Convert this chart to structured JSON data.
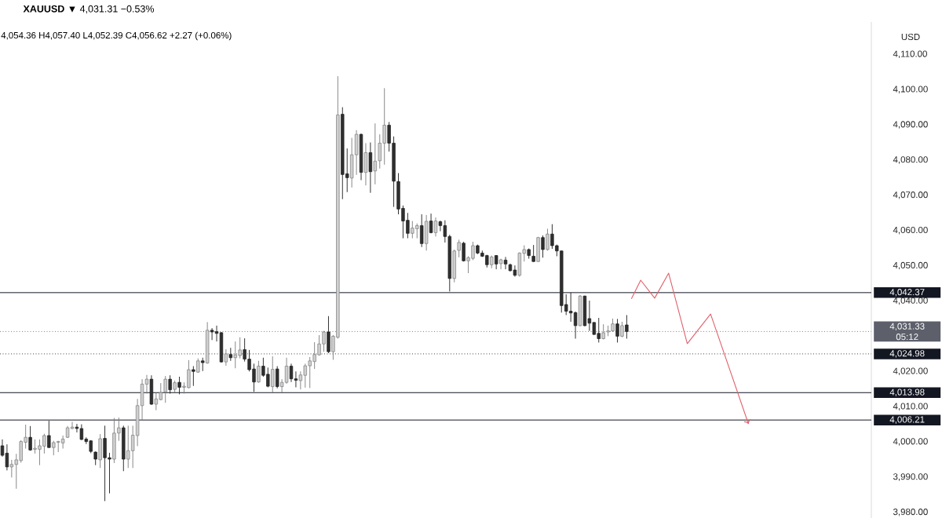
{
  "chart_data": {
    "type": "candlestick",
    "title": "**XAUUSD** ▼ 4,031.31 −0.53%",
    "subtitle": "4,054.36 H4,057.40 L4,052.39 C4,056.62 +2.27 (+0.06%)",
    "ylabel": "USD",
    "annotations": [
      "05:12"
    ],
    "categories": [
      null,
      null,
      null,
      null,
      null,
      null,
      null,
      null,
      null,
      null,
      null,
      null,
      null,
      null,
      null,
      null,
      null,
      null,
      null,
      null,
      null,
      null,
      null,
      null,
      null,
      null,
      null,
      null,
      null,
      null,
      null,
      null,
      null,
      null,
      null,
      null,
      null,
      null,
      null,
      null,
      null,
      null,
      null,
      null,
      null,
      null,
      null,
      null,
      null,
      null,
      null,
      null,
      null,
      null,
      null,
      null,
      null,
      null,
      null,
      null,
      null,
      null,
      null,
      null,
      null,
      null,
      null,
      null,
      null,
      null,
      null,
      null,
      null,
      null,
      null,
      null,
      null,
      null,
      null,
      null,
      null,
      null,
      null,
      null,
      null,
      null,
      null,
      null,
      null,
      null,
      null,
      null,
      null,
      null,
      null,
      null,
      null,
      null,
      null,
      null,
      null,
      null,
      null,
      null,
      null,
      null,
      null,
      null,
      null,
      null,
      null,
      null,
      null,
      null,
      null,
      null,
      null,
      null,
      null,
      null,
      null,
      null,
      null,
      null,
      null,
      null,
      null,
      null,
      null,
      null,
      null,
      null,
      null,
      null,
      null,
      null,
      null,
      null,
      null,
      null,
      null,
      null,
      null,
      null,
      null,
      null,
      null,
      null,
      null,
      null,
      null,
      null,
      null,
      null,
      null,
      null,
      null,
      null,
      null,
      null,
      null,
      null,
      null,
      null,
      null,
      null,
      null,
      null,
      null,
      null,
      null,
      null,
      null,
      null,
      null,
      null,
      null,
      null,
      null,
      null,
      null,
      null,
      null,
      null,
      null,
      null,
      null
    ],
    "ohlc": [
      [
        3998.9,
        4000.7,
        3995.8,
        3996.2
      ],
      [
        3996.8,
        3999.3,
        3991.9,
        3992.9
      ],
      [
        3992.9,
        3994.9,
        3989.9,
        3993.6
      ],
      [
        3993.6,
        3996.6,
        3986.7,
        3994.9
      ],
      [
        3994.7,
        4000.5,
        3994.1,
        4000.1
      ],
      [
        3999.9,
        4004.9,
        3998.1,
        4001.3
      ],
      [
        4001.3,
        4004.5,
        3997.5,
        3997.7
      ],
      [
        3997.9,
        4000.7,
        3996.7,
        3998.2
      ],
      [
        3997.9,
        4000.7,
        3993.4,
        3998.9
      ],
      [
        3998.8,
        4002.3,
        3996.7,
        4001.8
      ],
      [
        4001.8,
        4006.0,
        3998.3,
        3998.4
      ],
      [
        3998.4,
        4000.3,
        3996.2,
        3999.8
      ],
      [
        3999.9,
        4000.3,
        3997.1,
        4000.1
      ],
      [
        3999.7,
        4001.8,
        3998.1,
        4000.8
      ],
      [
        4001.3,
        4004.5,
        4001.1,
        4004.0
      ],
      [
        4003.8,
        4005.7,
        4003.6,
        4004.2
      ],
      [
        4004.2,
        4005.1,
        4002.7,
        4003.8
      ],
      [
        4003.8,
        4005.0,
        4000.5,
        4000.7
      ],
      [
        4000.8,
        4001.3,
        3999.4,
        4000.1
      ],
      [
        4000.3,
        4000.5,
        3996.8,
        3997.3
      ],
      [
        3997.1,
        3997.3,
        3993.4,
        3995.1
      ],
      [
        3994.9,
        4002.2,
        3992.6,
        4000.9
      ],
      [
        4001.0,
        4004.6,
        3983.2,
        3995.5
      ],
      [
        3995.5,
        3996.9,
        3985.4,
        3995.1
      ],
      [
        3995.1,
        4006.8,
        3994.0,
        4002.5
      ],
      [
        4002.5,
        4006.9,
        4000.3,
        4004.0
      ],
      [
        4004.0,
        4004.6,
        3991.7,
        3995.1
      ],
      [
        3995.1,
        4004.6,
        3992.6,
        3997.5
      ],
      [
        3997.5,
        4004.6,
        3992.6,
        4001.9
      ],
      [
        4001.8,
        4012.2,
        3998.8,
        4010.3
      ],
      [
        4010.3,
        4017.8,
        4006.21,
        4016.4
      ],
      [
        4016.4,
        4019.0,
        4013.7,
        4017.8
      ],
      [
        4017.8,
        4018.9,
        4010.5,
        4010.7
      ],
      [
        4010.7,
        4013.9,
        4009.0,
        4012.2
      ],
      [
        4012.0,
        4016.7,
        4011.8,
        4014.0
      ],
      [
        4014.2,
        4018.7,
        4011.1,
        4017.8
      ],
      [
        4017.8,
        4018.9,
        4013.7,
        4014.8
      ],
      [
        4014.9,
        4017.4,
        4014.0,
        4016.8
      ],
      [
        4016.9,
        4018.5,
        4013.5,
        4015.5
      ],
      [
        4015.5,
        4016.9,
        4013.7,
        4015.8
      ],
      [
        4015.4,
        4023.2,
        4015.2,
        4020.5
      ],
      [
        4020.5,
        4021.5,
        4015.9,
        4020.0
      ],
      [
        4019.8,
        4023.7,
        4019.6,
        4023.0
      ],
      [
        4023.0,
        4023.9,
        4020.1,
        4022.5
      ],
      [
        4022.4,
        4034.0,
        4022.2,
        4031.7
      ],
      [
        4031.7,
        4032.3,
        4028.9,
        4031.2
      ],
      [
        4031.3,
        4033.0,
        4028.5,
        4030.8
      ],
      [
        4031.0,
        4031.2,
        4022.5,
        4022.7
      ],
      [
        4022.7,
        4026.3,
        4021.6,
        4025.0
      ],
      [
        4024.8,
        4026.7,
        4023.0,
        4023.9
      ],
      [
        4023.9,
        4028.5,
        4020.9,
        4024.7
      ],
      [
        4024.5,
        4029.7,
        4023.7,
        4026.1
      ],
      [
        4026.2,
        4029.4,
        4022.8,
        4023.5
      ],
      [
        4023.5,
        4026.1,
        4020.0,
        4020.5
      ],
      [
        4020.7,
        4022.2,
        4014.2,
        4017.0
      ],
      [
        4017.0,
        4023.0,
        4016.8,
        4021.5
      ],
      [
        4021.5,
        4023.9,
        4018.5,
        4018.9
      ],
      [
        4019.2,
        4021.1,
        4015.5,
        4015.8
      ],
      [
        4015.7,
        4024.3,
        4013.98,
        4020.6
      ],
      [
        4020.7,
        4021.5,
        4015.2,
        4015.7
      ],
      [
        4015.7,
        4017.8,
        4014.0,
        4016.9
      ],
      [
        4016.9,
        4023.9,
        4016.5,
        4021.5
      ],
      [
        4021.5,
        4022.2,
        4017.0,
        4017.9
      ],
      [
        4017.9,
        4020.0,
        4015.5,
        4017.5
      ],
      [
        4017.4,
        4020.0,
        4014.9,
        4019.0
      ],
      [
        4018.9,
        4022.2,
        4015.4,
        4021.6
      ],
      [
        4021.6,
        4024.1,
        4015.3,
        4023.0
      ],
      [
        4022.8,
        4028.3,
        4020.7,
        4024.8
      ],
      [
        4024.7,
        4030.3,
        4024.5,
        4027.8
      ],
      [
        4027.8,
        4031.5,
        4025.6,
        4031.2
      ],
      [
        4031.2,
        4035.7,
        4025.2,
        4025.6
      ],
      [
        4025.6,
        4030.3,
        4023.3,
        4030.0
      ],
      [
        4029.7,
        4103.8,
        4029.3,
        4092.8
      ],
      [
        4093.0,
        4095.0,
        4068.9,
        4075.9
      ],
      [
        4076.1,
        4083.3,
        4070.9,
        4075.0
      ],
      [
        4074.9,
        4086.3,
        4072.2,
        4081.5
      ],
      [
        4081.5,
        4088.5,
        4075.8,
        4087.3
      ],
      [
        4087.3,
        4087.5,
        4074.3,
        4076.5
      ],
      [
        4076.5,
        4084.8,
        4072.8,
        4082.1
      ],
      [
        4082.1,
        4085.0,
        4070.7,
        4076.7
      ],
      [
        4076.9,
        4090.4,
        4073.1,
        4079.7
      ],
      [
        4079.8,
        4087.3,
        4077.6,
        4084.8
      ],
      [
        4084.8,
        4100.4,
        4078.7,
        4089.9
      ],
      [
        4089.9,
        4090.8,
        4082.4,
        4084.8
      ],
      [
        4084.8,
        4086.7,
        4066.7,
        4074.0
      ],
      [
        4073.9,
        4076.3,
        4064.6,
        4066.1
      ],
      [
        4066.3,
        4067.1,
        4057.8,
        4062.7
      ],
      [
        4062.9,
        4065.0,
        4057.8,
        4059.2
      ],
      [
        4059.2,
        4062.7,
        4057.8,
        4060.7
      ],
      [
        4060.5,
        4062.0,
        4057.8,
        4061.4
      ],
      [
        4061.4,
        4064.6,
        4055.3,
        4056.3
      ],
      [
        4056.3,
        4064.4,
        4054.3,
        4062.6
      ],
      [
        4062.7,
        4064.8,
        4059.2,
        4059.4
      ],
      [
        4059.4,
        4063.7,
        4058.3,
        4062.7
      ],
      [
        4062.5,
        4062.8,
        4059.8,
        4061.4
      ],
      [
        4061.4,
        4062.9,
        4056.6,
        4058.3
      ],
      [
        4058.3,
        4058.8,
        4042.7,
        4046.4
      ],
      [
        4046.4,
        4054.6,
        4045.3,
        4054.2
      ],
      [
        4054.36,
        4057.4,
        4052.39,
        4056.62
      ],
      [
        4056.4,
        4056.8,
        4051.2,
        4051.4
      ],
      [
        4051.4,
        4052.7,
        4047.9,
        4052.3
      ],
      [
        4052.1,
        4056.8,
        4051.6,
        4055.7
      ],
      [
        4055.7,
        4056.0,
        4053.3,
        4053.6
      ],
      [
        4053.6,
        4054.3,
        4052.5,
        4052.7
      ],
      [
        4052.9,
        4053.1,
        4049.5,
        4050.3
      ],
      [
        4050.3,
        4052.9,
        4049.3,
        4052.5
      ],
      [
        4052.9,
        4053.0,
        4049.0,
        4050.5
      ],
      [
        4050.6,
        4052.0,
        4049.0,
        4051.7
      ],
      [
        4051.6,
        4052.5,
        4049.0,
        4050.5
      ],
      [
        4050.3,
        4050.6,
        4048.4,
        4048.6
      ],
      [
        4048.8,
        4050.1,
        4046.9,
        4047.3
      ],
      [
        4047.3,
        4053.8,
        4046.9,
        4053.6
      ],
      [
        4053.5,
        4055.8,
        4051.2,
        4054.6
      ],
      [
        4054.6,
        4054.9,
        4052.0,
        4052.9
      ],
      [
        4052.7,
        4055.9,
        4051.1,
        4051.2
      ],
      [
        4051.2,
        4058.2,
        4051.1,
        4058.0
      ],
      [
        4058.0,
        4058.6,
        4052.3,
        4054.6
      ],
      [
        4054.6,
        4060.5,
        4054.3,
        4059.0
      ],
      [
        4059.0,
        4061.8,
        4054.8,
        4055.7
      ],
      [
        4055.7,
        4056.0,
        4052.7,
        4054.2
      ],
      [
        4054.2,
        4054.3,
        4036.7,
        4038.7
      ],
      [
        4039.0,
        4041.9,
        4036.0,
        4037.1
      ],
      [
        4037.1,
        4042.37,
        4034.1,
        4036.6
      ],
      [
        4036.7,
        4037.0,
        4029.3,
        4033.0
      ],
      [
        4033.0,
        4041.7,
        4032.8,
        4041.4
      ],
      [
        4041.4,
        4041.5,
        4032.8,
        4033.0
      ],
      [
        4035.0,
        4040.1,
        4031.5,
        4033.7
      ],
      [
        4033.9,
        4034.0,
        4030.4,
        4030.5
      ],
      [
        4030.8,
        4035.2,
        4028.2,
        4029.3
      ],
      [
        4029.3,
        4033.4,
        4029.1,
        4031.0
      ],
      [
        4031.2,
        4033.0,
        4030.0,
        4031.5
      ],
      [
        4031.5,
        4035.0,
        4031.2,
        4033.5
      ],
      [
        4033.5,
        4034.9,
        4028.2,
        4030.0
      ],
      [
        4030.0,
        4034.1,
        4029.7,
        4033.0
      ],
      [
        4033.2,
        4036.0,
        4029.3,
        4031.33
      ],
      null,
      null,
      null,
      null,
      null,
      null,
      null,
      null,
      null,
      null,
      null,
      null,
      null,
      null,
      null,
      null,
      null,
      null,
      null,
      null,
      null,
      null,
      null,
      null,
      null,
      null,
      null,
      null,
      null,
      null,
      null,
      null,
      null,
      null,
      null,
      null,
      null,
      null,
      null,
      null,
      null,
      null,
      null,
      null,
      null,
      null,
      null,
      null,
      null,
      null,
      null,
      null
    ],
    "colors": [
      "#2f2f2f",
      "#2f2f2f",
      "#cfcfcf",
      "#cfcfcf",
      "#cfcfcf",
      "#cfcfcf",
      "#2f2f2f",
      "#cfcfcf",
      "#cfcfcf",
      "#cfcfcf",
      "#2f2f2f",
      "#cfcfcf",
      "#cfcfcf",
      "#cfcfcf",
      "#cfcfcf",
      "#cfcfcf",
      "#2f2f2f",
      "#2f2f2f",
      "#2f2f2f",
      "#2f2f2f",
      "#2f2f2f",
      "#cfcfcf",
      "#2f2f2f",
      "#2f2f2f",
      "#cfcfcf",
      "#cfcfcf",
      "#2f2f2f",
      "#cfcfcf",
      "#cfcfcf",
      "#cfcfcf",
      "#cfcfcf",
      "#cfcfcf",
      "#2f2f2f",
      "#cfcfcf",
      "#cfcfcf",
      "#cfcfcf",
      "#2f2f2f",
      "#cfcfcf",
      "#2f2f2f",
      "#cfcfcf",
      "#cfcfcf",
      "#2f2f2f",
      "#cfcfcf",
      "#2f2f2f",
      "#cfcfcf",
      "#2f2f2f",
      "#2f2f2f",
      "#2f2f2f",
      "#cfcfcf",
      "#2f2f2f",
      "#cfcfcf",
      "#cfcfcf",
      "#2f2f2f",
      "#2f2f2f",
      "#2f2f2f",
      "#cfcfcf",
      "#2f2f2f",
      "#2f2f2f",
      "#cfcfcf",
      "#2f2f2f",
      "#cfcfcf",
      "#cfcfcf",
      "#2f2f2f",
      "#2f2f2f",
      "#cfcfcf",
      "#cfcfcf",
      "#cfcfcf",
      "#cfcfcf",
      "#cfcfcf",
      "#cfcfcf",
      "#2f2f2f",
      "#cfcfcf",
      "#cfcfcf",
      "#2f2f2f",
      "#2f2f2f",
      "#cfcfcf",
      "#cfcfcf",
      "#2f2f2f",
      "#cfcfcf",
      "#2f2f2f",
      "#cfcfcf",
      "#cfcfcf",
      "#cfcfcf",
      "#2f2f2f",
      "#2f2f2f",
      "#2f2f2f",
      "#2f2f2f",
      "#2f2f2f",
      "#cfcfcf",
      "#cfcfcf",
      "#2f2f2f",
      "#cfcfcf",
      "#2f2f2f",
      "#cfcfcf",
      "#2f2f2f",
      "#2f2f2f",
      "#2f2f2f",
      "#cfcfcf",
      "#cfcfcf",
      "#2f2f2f",
      "#cfcfcf",
      "#cfcfcf",
      "#2f2f2f",
      "#2f2f2f",
      "#2f2f2f",
      "#cfcfcf",
      "#2f2f2f",
      "#cfcfcf",
      "#2f2f2f",
      "#2f2f2f",
      "#2f2f2f",
      "#cfcfcf",
      "#cfcfcf",
      "#2f2f2f",
      "#2f2f2f",
      "#cfcfcf",
      "#2f2f2f",
      "#cfcfcf",
      "#2f2f2f",
      "#2f2f2f",
      "#2f2f2f",
      "#2f2f2f",
      "#2f2f2f",
      "#2f2f2f",
      "#cfcfcf",
      "#2f2f2f",
      "#2f2f2f",
      "#2f2f2f",
      "#2f2f2f",
      "#cfcfcf",
      "#cfcfcf",
      "#cfcfcf",
      "#2f2f2f",
      "#cfcfcf",
      "#2f2f2f",
      null,
      null,
      null,
      null,
      null,
      null,
      null,
      null,
      null,
      null,
      null,
      null,
      null,
      null,
      null,
      null,
      null,
      null,
      null,
      null,
      null,
      null,
      null,
      null,
      null,
      null,
      null,
      null,
      null,
      null,
      null,
      null,
      null,
      null,
      null,
      null,
      null,
      null,
      null,
      null,
      null,
      null,
      null,
      null,
      null,
      null,
      null,
      null,
      null,
      null,
      null,
      null
    ],
    "series": [
      {
        "type": "line",
        "color": "#e0606b",
        "values": [
          null,
          null,
          null,
          null,
          null,
          null,
          null,
          null,
          null,
          null,
          null,
          null,
          null,
          null,
          null,
          null,
          null,
          null,
          null,
          null,
          null,
          null,
          null,
          null,
          null,
          null,
          null,
          null,
          null,
          null,
          null,
          null,
          null,
          null,
          null,
          null,
          null,
          null,
          null,
          null,
          null,
          null,
          null,
          null,
          null,
          null,
          null,
          null,
          null,
          null,
          null,
          null,
          null,
          null,
          null,
          null,
          null,
          null,
          null,
          null,
          null,
          null,
          null,
          null,
          null,
          null,
          null,
          null,
          null,
          null,
          null,
          null,
          null,
          null,
          null,
          null,
          null,
          null,
          null,
          null,
          null,
          null,
          null,
          null,
          null,
          null,
          null,
          null,
          null,
          null,
          null,
          null,
          null,
          null,
          null,
          null,
          null,
          null,
          null,
          null,
          null,
          null,
          null,
          null,
          null,
          null,
          null,
          null,
          null,
          null,
          null,
          null,
          null,
          null,
          null,
          null,
          null,
          null,
          null,
          null,
          null,
          null,
          null,
          null,
          null,
          null,
          null,
          null,
          null,
          null,
          null,
          null,
          null,
          null,
          null,
          4040.6,
          null,
          4045.9,
          null,
          null,
          4040.8,
          null,
          null,
          4047.9,
          null,
          null,
          null,
          4027.9,
          null,
          null,
          null,
          null,
          4036.3,
          null,
          null,
          null,
          null,
          null,
          null,
          null,
          4005.6,
          null,
          null,
          null,
          null,
          null,
          null,
          null,
          null,
          null,
          null,
          null,
          null,
          null,
          null,
          null,
          null,
          null,
          null,
          null,
          null,
          null,
          null,
          null,
          null,
          null,
          null
        ]
      }
    ],
    "ylim": [
      3978.4,
      4119.2
    ],
    "yticks": [
      {
        "value": 4110,
        "label": "4,110.00"
      },
      {
        "value": 4100,
        "label": "4,100.00"
      },
      {
        "value": 4090,
        "label": "4,090.00"
      },
      {
        "value": 4080,
        "label": "4,080.00"
      },
      {
        "value": 4070,
        "label": "4,070.00"
      },
      {
        "value": 4060,
        "label": "4,060.00"
      },
      {
        "value": 4050,
        "label": "4,050.00"
      },
      {
        "value": 4040,
        "label": "4,040.00"
      },
      {
        "value": 4020,
        "label": "4,020.00"
      },
      {
        "value": 4010,
        "label": "4,010.00"
      },
      {
        "value": 4000,
        "label": "4,000.00"
      },
      {
        "value": 3990,
        "label": "3,990.00"
      },
      {
        "value": 3980,
        "label": "3,980.00"
      }
    ],
    "ref_lines": [
      {
        "axis": "y",
        "value": 4042.37,
        "label": "4,042.37",
        "color": "#131722"
      },
      {
        "axis": "y",
        "value": 4031.33,
        "label": "4,031.33",
        "color": "#5d606b",
        "line_style": "dotted"
      },
      {
        "axis": "y",
        "value": 4024.98,
        "label": "4,024.98",
        "color": "#131722",
        "line_style": "dotted"
      },
      {
        "axis": "y",
        "value": 4013.98,
        "label": "4,013.98",
        "color": "#131722"
      },
      {
        "axis": "y",
        "value": 4006.21,
        "label": "4,006.21",
        "color": "#131722"
      }
    ]
  }
}
